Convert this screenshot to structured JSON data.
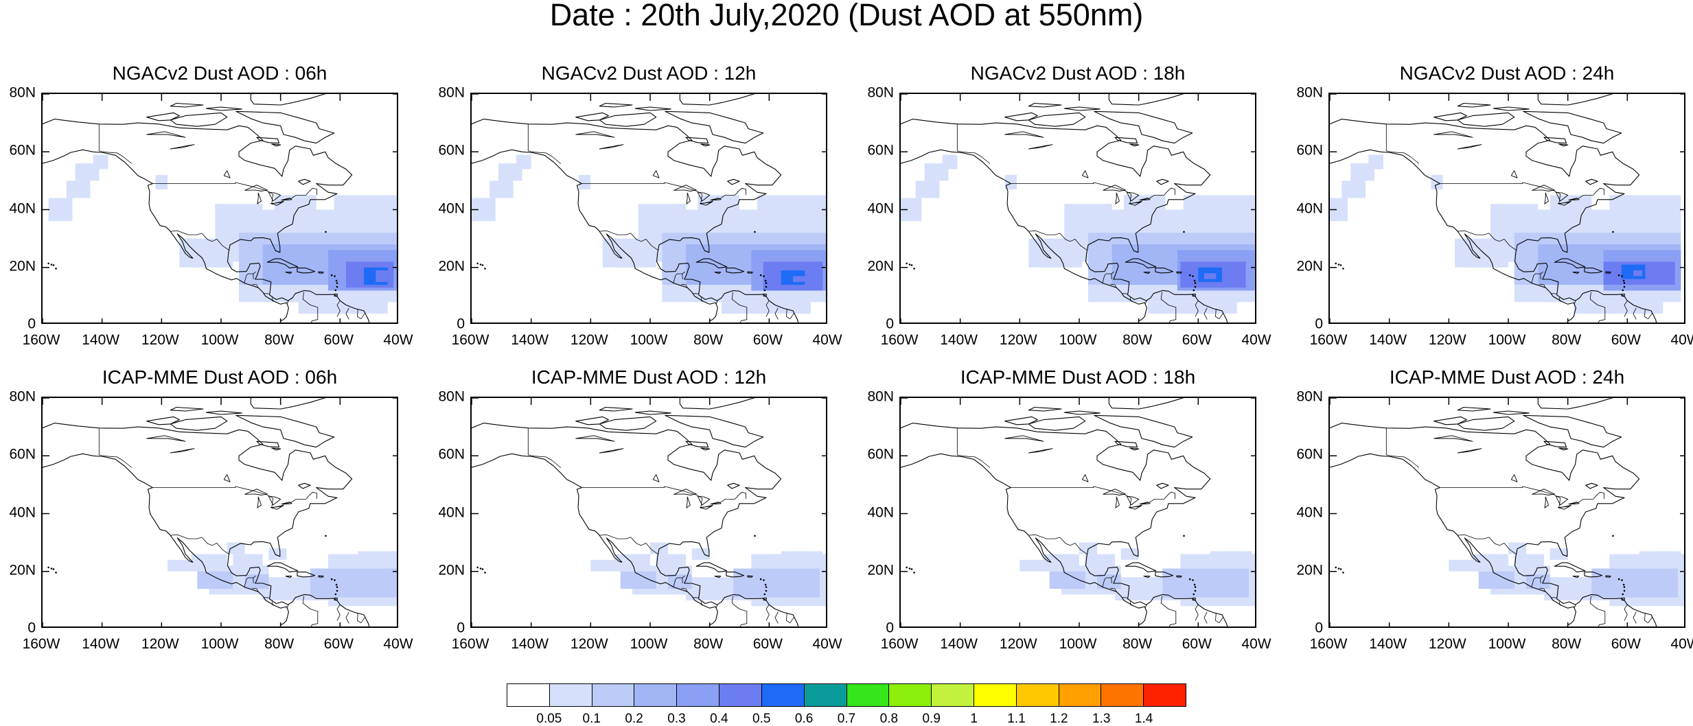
{
  "title": "Date : 20th July,2020 (Dust AOD at 550nm)",
  "panels": [
    {
      "title": "NGACv2 Dust AOD : 06h",
      "model": "NGACv2",
      "lead": "06h"
    },
    {
      "title": "NGACv2 Dust AOD : 12h",
      "model": "NGACv2",
      "lead": "12h"
    },
    {
      "title": "NGACv2 Dust AOD : 18h",
      "model": "NGACv2",
      "lead": "18h"
    },
    {
      "title": "NGACv2 Dust AOD : 24h",
      "model": "NGACv2",
      "lead": "24h"
    },
    {
      "title": "ICAP-MME Dust AOD : 06h",
      "model": "ICAP-MME",
      "lead": "06h"
    },
    {
      "title": "ICAP-MME Dust AOD : 12h",
      "model": "ICAP-MME",
      "lead": "12h"
    },
    {
      "title": "ICAP-MME Dust AOD : 18h",
      "model": "ICAP-MME",
      "lead": "18h"
    },
    {
      "title": "ICAP-MME Dust AOD : 24h",
      "model": "ICAP-MME",
      "lead": "24h"
    }
  ],
  "axes": {
    "lon_range": [
      -160,
      -40
    ],
    "lat_range": [
      0,
      80
    ],
    "lon_ticks": [
      {
        "value": -160,
        "label": "160W"
      },
      {
        "value": -140,
        "label": "140W"
      },
      {
        "value": -120,
        "label": "120W"
      },
      {
        "value": -100,
        "label": "100W"
      },
      {
        "value": -80,
        "label": "80W"
      },
      {
        "value": -60,
        "label": "60W"
      },
      {
        "value": -40,
        "label": "40W"
      }
    ],
    "lat_ticks": [
      {
        "value": 0,
        "label": "0"
      },
      {
        "value": 20,
        "label": "20N"
      },
      {
        "value": 40,
        "label": "40N"
      },
      {
        "value": 60,
        "label": "60N"
      },
      {
        "value": 80,
        "label": "80N"
      }
    ]
  },
  "colorbar": {
    "labels": [
      "0.05",
      "0.1",
      "0.2",
      "0.3",
      "0.4",
      "0.5",
      "0.6",
      "0.7",
      "0.8",
      "0.9",
      "1",
      "1.1",
      "1.2",
      "1.3",
      "1.4"
    ],
    "colors": [
      "#ffffff",
      "#d6e0fb",
      "#bccbf8",
      "#a2b6f6",
      "#8aa0f4",
      "#6b7df0",
      "#1e6cf6",
      "#0a9b9b",
      "#34e61a",
      "#8cf00a",
      "#c2f23c",
      "#ffff00",
      "#ffc800",
      "#ff9f00",
      "#ff7400",
      "#ff2200"
    ]
  },
  "chart_data": {
    "type": "heatmap",
    "variable": "Dust AOD at 550nm",
    "date": "20th July,2020",
    "units_note": "colors map to the colorbar bins",
    "panels_approx": [
      {
        "model": "NGACv2",
        "lead": "06h",
        "max_aod_approx": 0.5,
        "core_center": {
          "lon": -48,
          "lat": 16
        }
      },
      {
        "model": "NGACv2",
        "lead": "12h",
        "max_aod_approx": 0.5,
        "core_center": {
          "lon": -52,
          "lat": 17
        }
      },
      {
        "model": "NGACv2",
        "lead": "18h",
        "max_aod_approx": 0.5,
        "core_center": {
          "lon": -55,
          "lat": 17
        }
      },
      {
        "model": "NGACv2",
        "lead": "24h",
        "max_aod_approx": 0.5,
        "core_center": {
          "lon": -58,
          "lat": 18
        }
      },
      {
        "model": "ICAP-MME",
        "lead": "06h",
        "max_aod_approx": 0.2,
        "core_center": {
          "lon": -55,
          "lat": 18
        }
      },
      {
        "model": "ICAP-MME",
        "lead": "12h",
        "max_aod_approx": 0.2,
        "core_center": {
          "lon": -55,
          "lat": 17
        }
      },
      {
        "model": "ICAP-MME",
        "lead": "18h",
        "max_aod_approx": 0.2,
        "core_center": {
          "lon": -55,
          "lat": 17
        }
      },
      {
        "model": "ICAP-MME",
        "lead": "24h",
        "max_aod_approx": 0.2,
        "core_center": {
          "lon": -55,
          "lat": 17
        }
      }
    ]
  }
}
